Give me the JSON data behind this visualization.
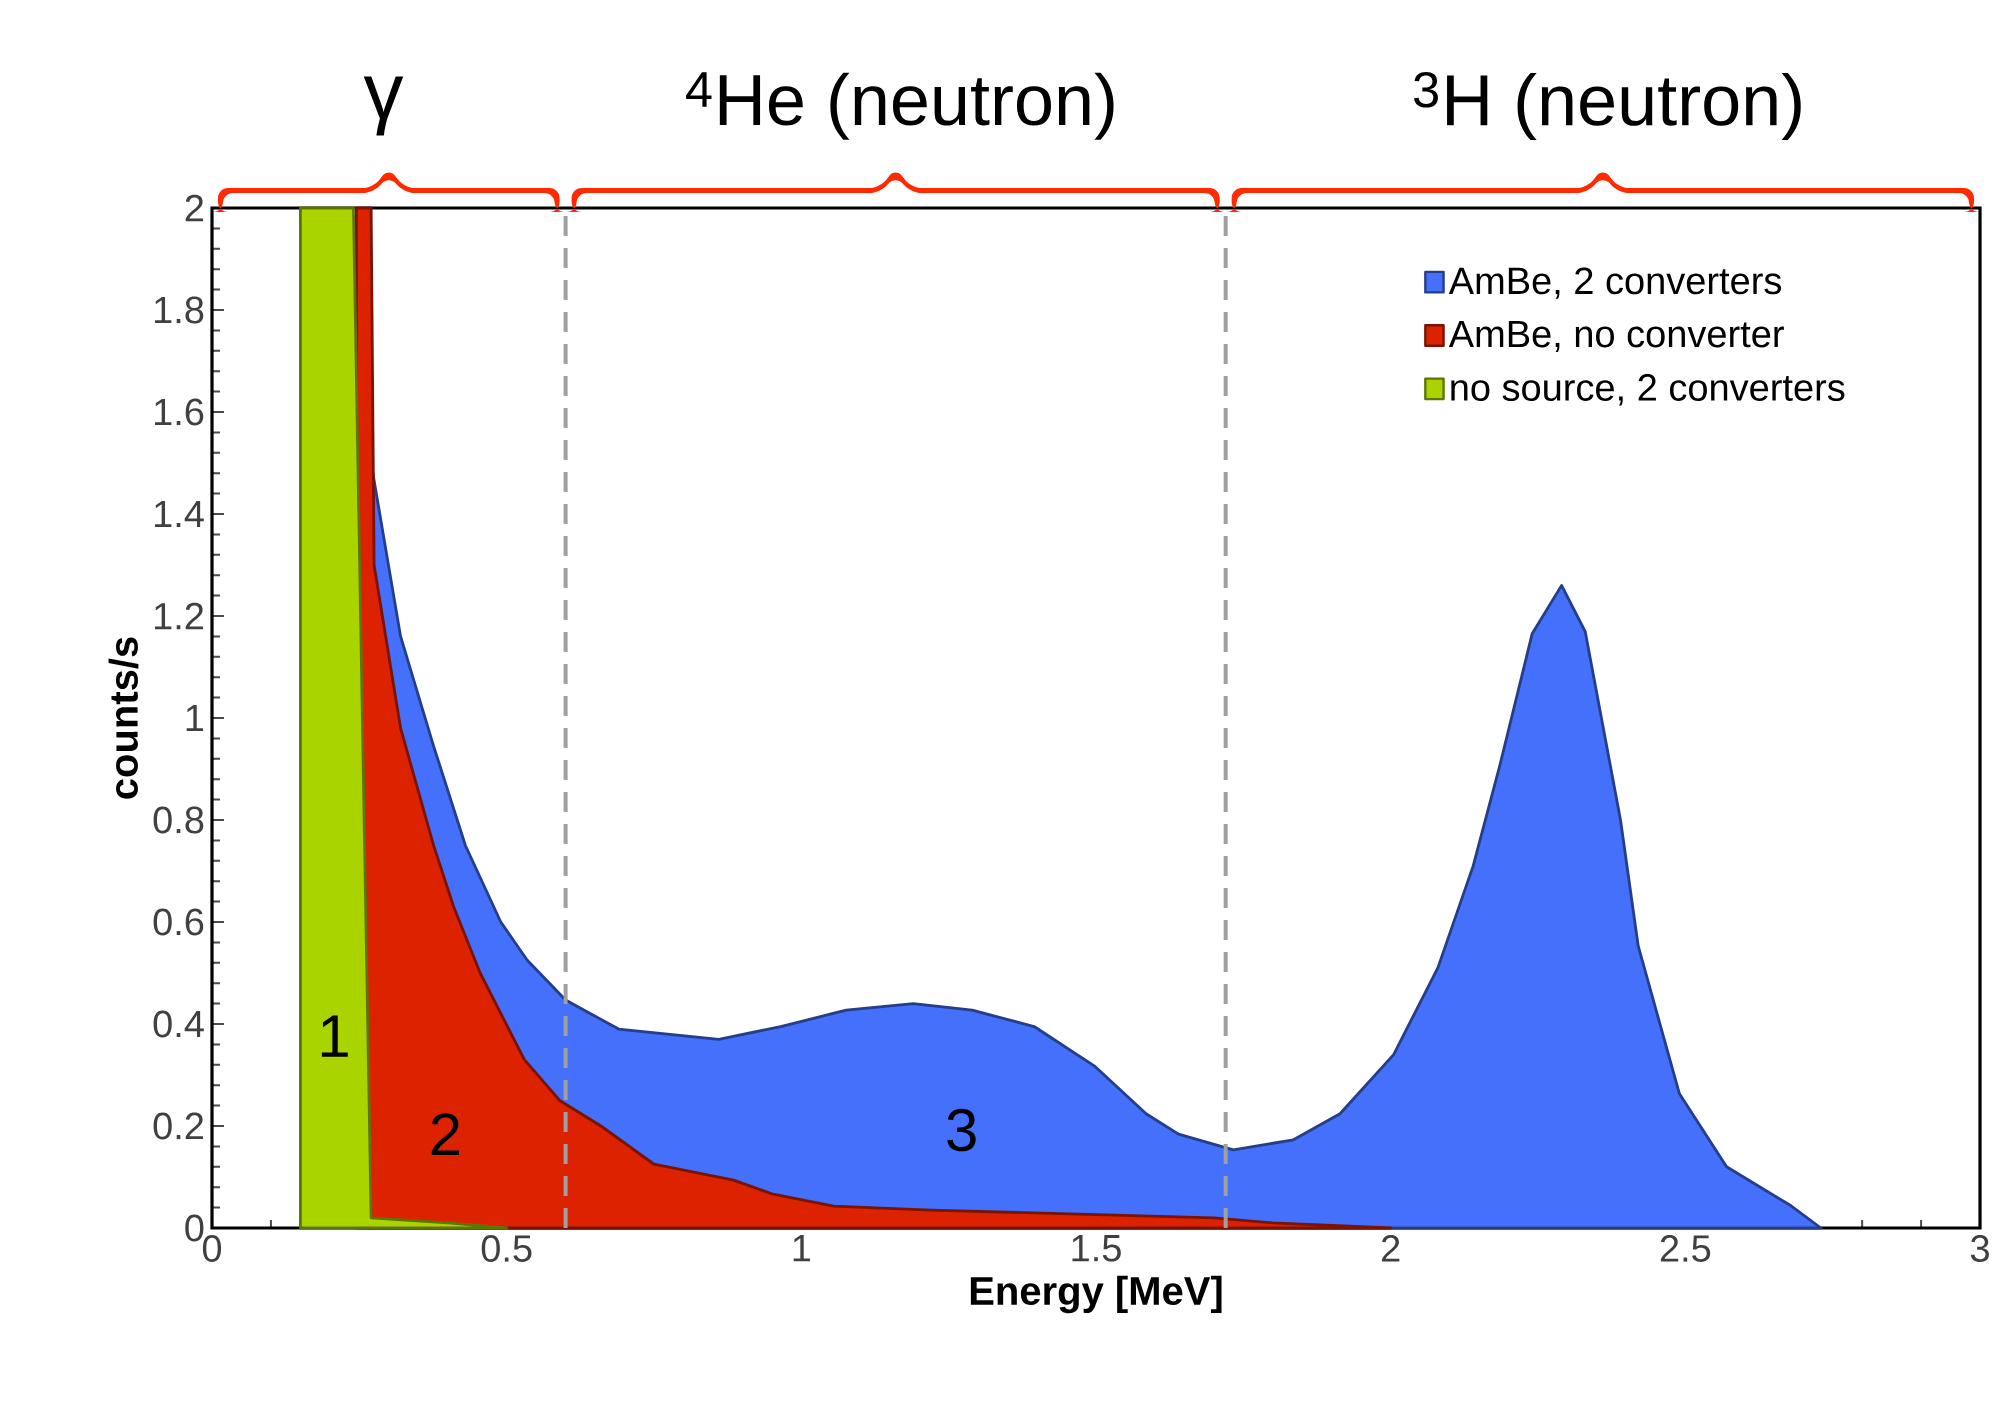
{
  "chart_data": {
    "type": "area",
    "xlabel": "Energy [MeV]",
    "ylabel": "counts/s",
    "xlim": [
      0,
      3
    ],
    "ylim": [
      0,
      2
    ],
    "xticks": [
      0,
      0.5,
      1,
      1.5,
      2,
      2.5,
      3
    ],
    "yticks": [
      0,
      0.2,
      0.4,
      0.6,
      0.8,
      1,
      1.2,
      1.4,
      1.6,
      1.8,
      2
    ],
    "grid": false,
    "legend": "top right",
    "series": [
      {
        "name": "AmBe, 2 converters",
        "color": "#4470fb",
        "x": [
          0.265,
          0.27,
          0.32,
          0.376,
          0.43,
          0.49,
          0.535,
          0.6,
          0.69,
          0.86,
          0.965,
          1.076,
          1.19,
          1.29,
          1.395,
          1.497,
          1.585,
          1.64,
          1.733,
          1.835,
          1.914,
          2.005,
          2.08,
          2.14,
          2.185,
          2.24,
          2.29,
          2.33,
          2.39,
          2.42,
          2.49,
          2.57,
          2.68,
          2.73
        ],
        "values": [
          2,
          1.5,
          1.16,
          0.945,
          0.75,
          0.6,
          0.525,
          0.447,
          0.39,
          0.37,
          0.395,
          0.427,
          0.44,
          0.427,
          0.395,
          0.318,
          0.224,
          0.184,
          0.153,
          0.173,
          0.224,
          0.34,
          0.51,
          0.71,
          0.906,
          1.165,
          1.26,
          1.17,
          0.8,
          0.553,
          0.263,
          0.12,
          0.043,
          0
        ]
      },
      {
        "name": "AmBe, no converter",
        "color": "#dd2200",
        "x": [
          0.245,
          0.27,
          0.275,
          0.32,
          0.376,
          0.41,
          0.455,
          0.53,
          0.59,
          0.66,
          0.75,
          0.885,
          0.95,
          1.055,
          1.22,
          1.7,
          1.8,
          2
        ],
        "values": [
          2,
          2,
          1.3,
          0.98,
          0.75,
          0.63,
          0.5,
          0.33,
          0.25,
          0.2,
          0.125,
          0.094,
          0.067,
          0.043,
          0.035,
          0.02,
          0.01,
          0
        ]
      },
      {
        "name": "no source, 2 converters",
        "color": "#aad400",
        "x": [
          0.15,
          0.15,
          0.24,
          0.27,
          0.4,
          0.5
        ],
        "values": [
          0,
          2,
          2,
          0.02,
          0.01,
          0
        ]
      }
    ],
    "ref_lines": [
      {
        "axis": "x",
        "value": 0.6,
        "color": "#a0a0a0",
        "line_style": "dashed"
      },
      {
        "axis": "x",
        "value": 1.72,
        "color": "#a0a0a0",
        "line_style": "dashed"
      }
    ],
    "annotations": [
      "γ",
      "$^{4}$He (neutron)",
      "$^{3}$H (neutron)",
      "1",
      "2",
      "3"
    ]
  }
}
